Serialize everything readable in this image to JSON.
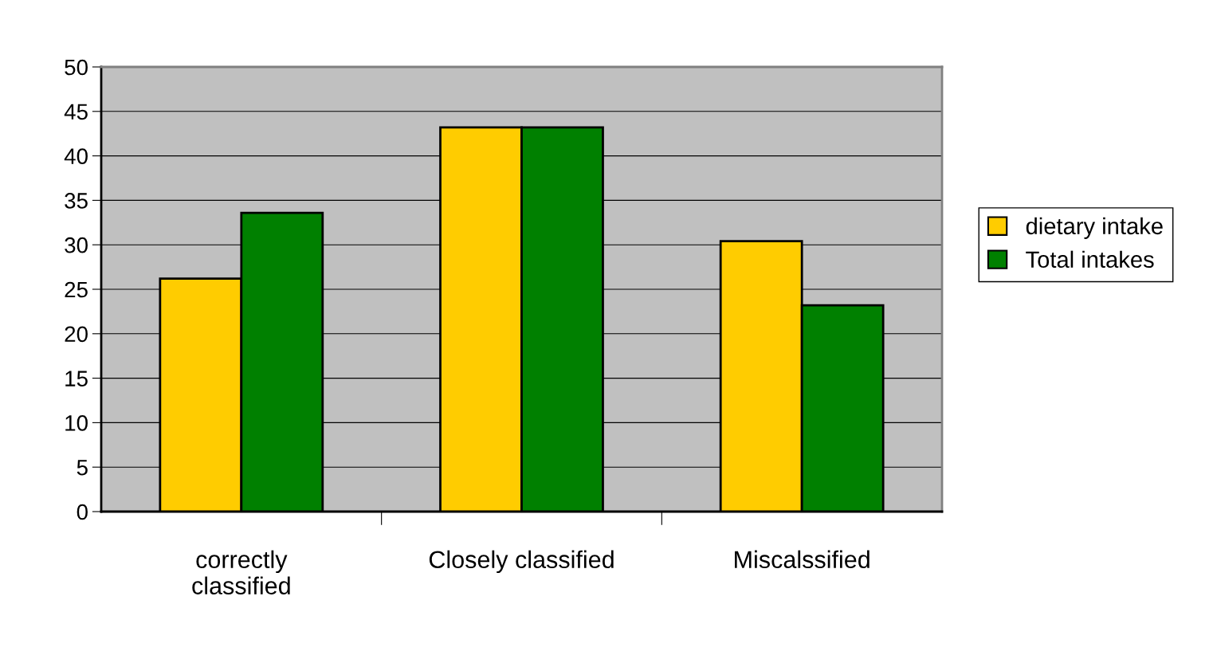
{
  "chart_data": {
    "type": "bar",
    "categories": [
      "correctly\nclassified",
      "Closely classified",
      "Miscalssified"
    ],
    "series": [
      {
        "name": "dietary intake",
        "color": "#ffcc00",
        "values": [
          26.2,
          43.2,
          30.4
        ]
      },
      {
        "name": "Total intakes",
        "color": "#008000",
        "values": [
          33.6,
          43.2,
          23.2
        ]
      }
    ],
    "ylim": [
      0,
      50
    ],
    "yticks": [
      0,
      5,
      10,
      15,
      20,
      25,
      30,
      35,
      40,
      45,
      50
    ],
    "grid": "y",
    "legend": "right"
  }
}
